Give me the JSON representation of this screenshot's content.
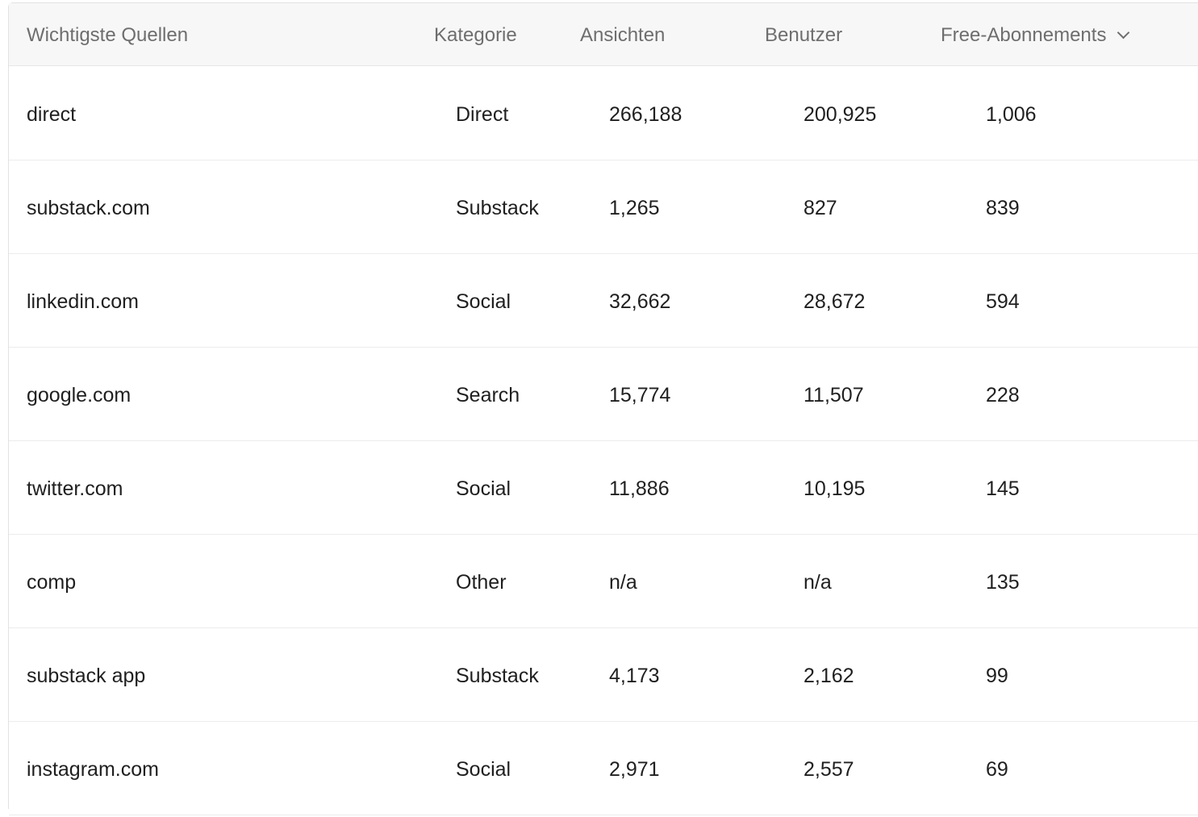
{
  "table": {
    "columns": {
      "source": "Wichtigste Quellen",
      "category": "Kategorie",
      "views": "Ansichten",
      "users": "Benutzer",
      "free_subs": "Free-Abonnements"
    },
    "sort_icon": "chevron-down-icon",
    "rows": [
      {
        "source": "direct",
        "category": "Direct",
        "views": "266,188",
        "users": "200,925",
        "free_subs": "1,006"
      },
      {
        "source": "substack.com",
        "category": "Substack",
        "views": "1,265",
        "users": "827",
        "free_subs": "839"
      },
      {
        "source": "linkedin.com",
        "category": "Social",
        "views": "32,662",
        "users": "28,672",
        "free_subs": "594"
      },
      {
        "source": "google.com",
        "category": "Search",
        "views": "15,774",
        "users": "11,507",
        "free_subs": "228"
      },
      {
        "source": "twitter.com",
        "category": "Social",
        "views": "11,886",
        "users": "10,195",
        "free_subs": "145"
      },
      {
        "source": "comp",
        "category": "Other",
        "views": "n/a",
        "users": "n/a",
        "free_subs": "135"
      },
      {
        "source": "substack app",
        "category": "Substack",
        "views": "4,173",
        "users": "2,162",
        "free_subs": "99"
      },
      {
        "source": "instagram.com",
        "category": "Social",
        "views": "2,971",
        "users": "2,557",
        "free_subs": "69"
      }
    ]
  }
}
